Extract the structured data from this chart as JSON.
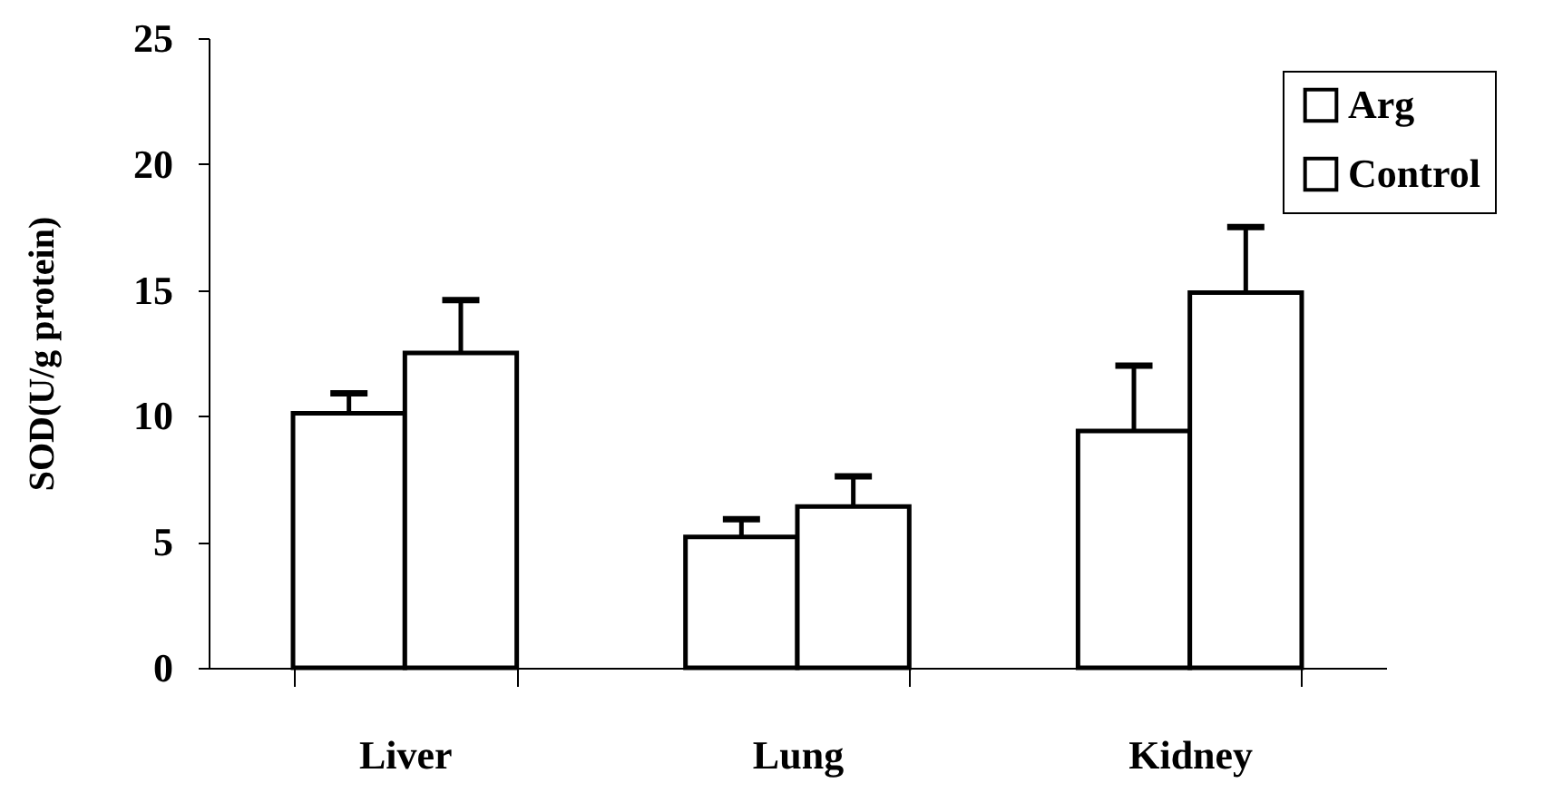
{
  "chart_data": {
    "type": "bar",
    "ylabel": "SOD(U/g protein)",
    "categories": [
      "Liver",
      "Lung",
      "Kidney"
    ],
    "series": [
      {
        "name": "Arg",
        "color": "#ffffff",
        "values": [
          10.1,
          5.2,
          9.4
        ],
        "errors": [
          0.8,
          0.7,
          2.6
        ]
      },
      {
        "name": "Control",
        "color": "#ffffff",
        "values": [
          12.5,
          6.4,
          14.9
        ],
        "errors": [
          2.1,
          1.2,
          2.6
        ]
      }
    ],
    "ylim": [
      0,
      25
    ],
    "yticks": [
      0,
      5,
      10,
      15,
      20,
      25
    ],
    "grid": false,
    "legend": "top right"
  }
}
